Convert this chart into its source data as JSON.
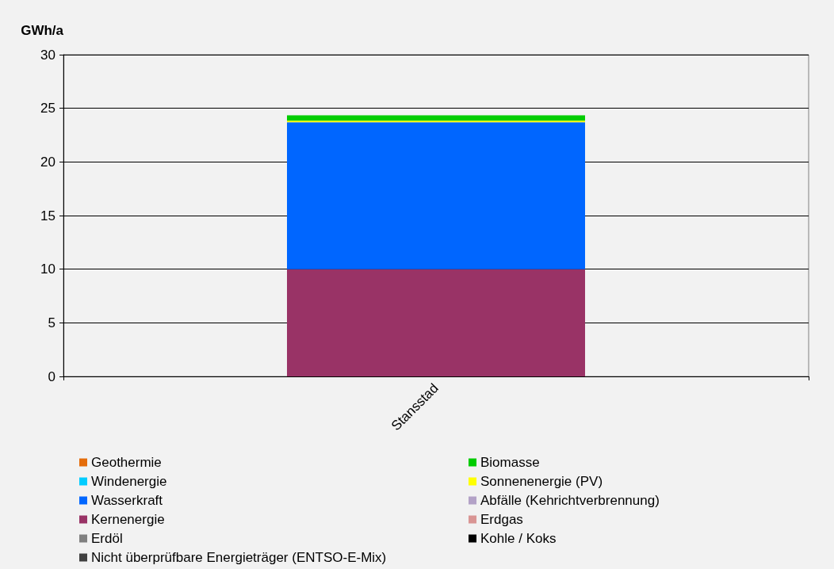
{
  "chart_data": {
    "type": "bar",
    "ylabel": "GWh/a",
    "categories": [
      "Stansstad"
    ],
    "stacked": true,
    "ylim": [
      0,
      30
    ],
    "yticks": [
      0,
      5,
      10,
      15,
      20,
      25,
      30
    ],
    "grid": "y",
    "legend": "bottom",
    "series": [
      {
        "name": "Nicht überprüfbare Energieträger (ENTSO-E-Mix)",
        "color": "#404040",
        "values": [
          0
        ]
      },
      {
        "name": "Kohle / Koks",
        "color": "#000000",
        "values": [
          0
        ]
      },
      {
        "name": "Erdöl",
        "color": "#808080",
        "values": [
          0
        ]
      },
      {
        "name": "Erdgas",
        "color": "#d99594",
        "values": [
          0
        ]
      },
      {
        "name": "Kernenergie",
        "color": "#993366",
        "values": [
          10.0
        ]
      },
      {
        "name": "Abfälle (Kehrichtverbrennung)",
        "color": "#b3a2c7",
        "values": [
          0
        ]
      },
      {
        "name": "Wasserkraft",
        "color": "#0066ff",
        "values": [
          13.7
        ]
      },
      {
        "name": "Sonnenenergie (PV)",
        "color": "#ffff00",
        "values": [
          0.15
        ]
      },
      {
        "name": "Windenergie",
        "color": "#00ccff",
        "values": [
          0
        ]
      },
      {
        "name": "Biomasse",
        "color": "#00cc00",
        "values": [
          0.5
        ]
      },
      {
        "name": "Geothermie",
        "color": "#e46c0a",
        "values": [
          0
        ]
      }
    ]
  }
}
